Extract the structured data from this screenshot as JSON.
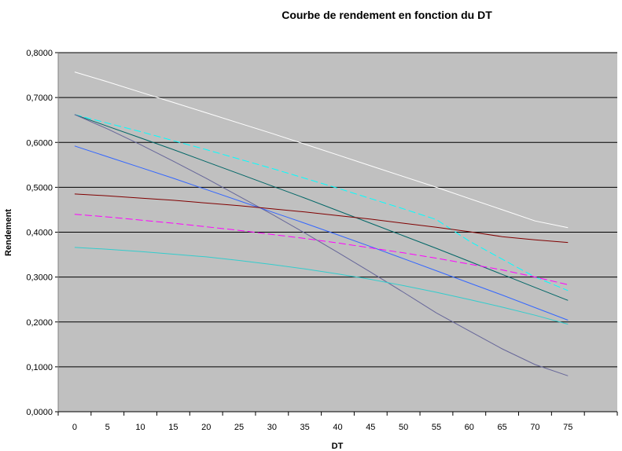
{
  "chart_data": {
    "type": "line",
    "title": "Courbe de rendement en fonction du DT",
    "xlabel": "DT",
    "ylabel": "Rendement",
    "xlim": [
      -2.5,
      82.5
    ],
    "ylim": [
      0,
      0.8
    ],
    "x_ticks": [
      "0",
      "5",
      "10",
      "15",
      "20",
      "25",
      "30",
      "35",
      "40",
      "45",
      "50",
      "55",
      "60",
      "65",
      "70",
      "75"
    ],
    "y_ticks": [
      "0,0000",
      "0,1000",
      "0,2000",
      "0,3000",
      "0,4000",
      "0,5000",
      "0,6000",
      "0,7000",
      "0,8000"
    ],
    "y_tick_values": [
      0,
      0.1,
      0.2,
      0.3,
      0.4,
      0.5,
      0.6,
      0.7,
      0.8
    ],
    "grid": "horizontal",
    "legend": "none",
    "plot_background": "#c0c0c0",
    "x": [
      0,
      5,
      10,
      15,
      20,
      25,
      30,
      35,
      40,
      45,
      50,
      55,
      60,
      65,
      70,
      75
    ],
    "series": [
      {
        "color": "#ffffff",
        "dash": "solid",
        "values": [
          0.757,
          0.735,
          0.712,
          0.689,
          0.666,
          0.643,
          0.62,
          0.596,
          0.572,
          0.548,
          0.524,
          0.5,
          0.475,
          0.45,
          0.425,
          0.41
        ]
      },
      {
        "color": "#00ffff",
        "dash": "dashed",
        "values": [
          0.662,
          0.643,
          0.624,
          0.604,
          0.584,
          0.563,
          0.542,
          0.52,
          0.498,
          0.475,
          0.452,
          0.428,
          0.38,
          0.34,
          0.3,
          0.27
        ]
      },
      {
        "color": "#006666",
        "dash": "solid",
        "values": [
          0.662,
          0.636,
          0.61,
          0.584,
          0.557,
          0.53,
          0.503,
          0.476,
          0.448,
          0.42,
          0.392,
          0.364,
          0.335,
          0.306,
          0.277,
          0.248
        ]
      },
      {
        "color": "#666699",
        "dash": "solid",
        "values": [
          0.662,
          0.63,
          0.595,
          0.558,
          0.52,
          0.48,
          0.44,
          0.398,
          0.355,
          0.311,
          0.266,
          0.22,
          0.18,
          0.14,
          0.105,
          0.08
        ]
      },
      {
        "color": "#3366ff",
        "dash": "solid",
        "values": [
          0.592,
          0.568,
          0.544,
          0.52,
          0.495,
          0.47,
          0.445,
          0.42,
          0.394,
          0.368,
          0.341,
          0.314,
          0.287,
          0.26,
          0.232,
          0.204
        ]
      },
      {
        "color": "#800000",
        "dash": "solid",
        "values": [
          0.485,
          0.481,
          0.476,
          0.471,
          0.465,
          0.459,
          0.452,
          0.445,
          0.437,
          0.429,
          0.42,
          0.411,
          0.401,
          0.39,
          0.383,
          0.377
        ]
      },
      {
        "color": "#ff00ff",
        "dash": "dashed",
        "values": [
          0.44,
          0.434,
          0.427,
          0.42,
          0.412,
          0.404,
          0.395,
          0.386,
          0.376,
          0.365,
          0.354,
          0.342,
          0.329,
          0.316,
          0.3,
          0.283
        ]
      },
      {
        "color": "#33cccc",
        "dash": "solid",
        "values": [
          0.366,
          0.362,
          0.357,
          0.351,
          0.345,
          0.337,
          0.328,
          0.318,
          0.307,
          0.295,
          0.281,
          0.266,
          0.25,
          0.233,
          0.215,
          0.195
        ]
      }
    ]
  }
}
